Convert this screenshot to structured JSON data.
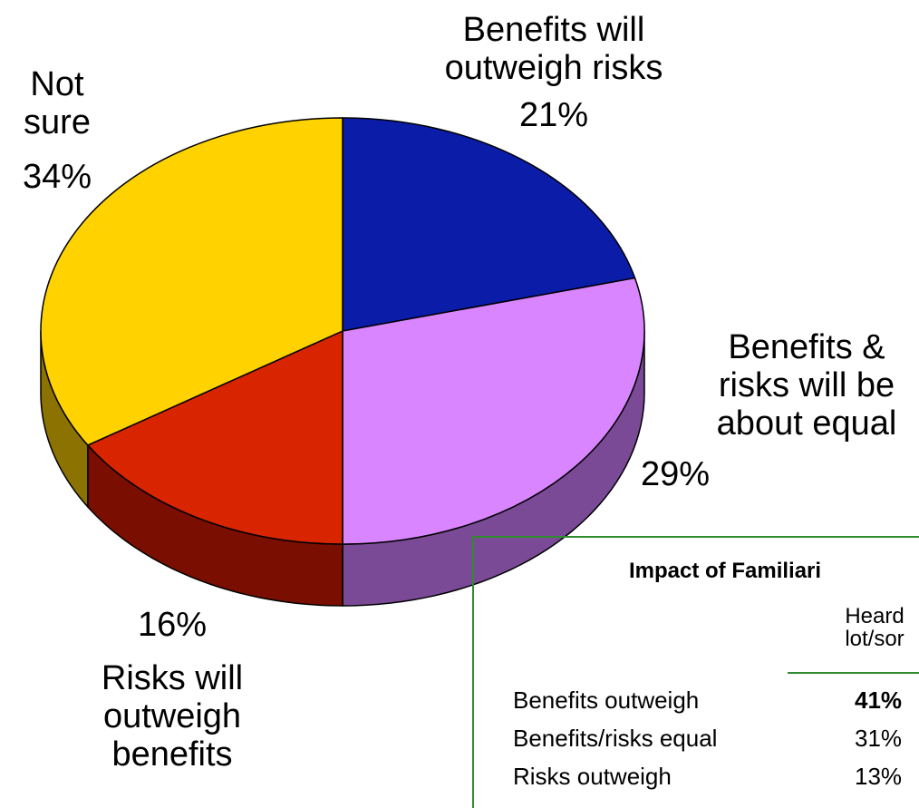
{
  "chart_data": {
    "type": "pie",
    "title": "",
    "slices": [
      {
        "label": "Benefits will outweigh risks",
        "lines": [
          "Benefits will",
          "outweigh risks"
        ],
        "value": 21,
        "pct_label": "21%",
        "color": "#0a1ca8",
        "side_color": "#05105e"
      },
      {
        "label": "Benefits & risks will be about equal",
        "lines": [
          "Benefits &",
          "risks will be",
          "about equal"
        ],
        "value": 29,
        "pct_label": "29%",
        "color": "#d985ff",
        "side_color": "#7a4a96"
      },
      {
        "label": "Risks will outweigh benefits",
        "lines": [
          "Risks will",
          "outweigh",
          "benefits"
        ],
        "value": 16,
        "pct_label": "16%",
        "color": "#d92400",
        "side_color": "#7a0e00"
      },
      {
        "label": "Not sure",
        "lines": [
          "Not",
          "sure"
        ],
        "value": 34,
        "pct_label": "34%",
        "color": "#ffd200",
        "side_color": "#8c7200"
      }
    ]
  },
  "impact_table": {
    "title": "Impact of Familiari",
    "column_header": [
      "Heard",
      "lot/sor"
    ],
    "rows": [
      {
        "label": "Benefits outweigh",
        "value": "41%",
        "bold": true
      },
      {
        "label": "Benefits/risks equal",
        "value": "31%",
        "bold": false
      },
      {
        "label": "Risks outweigh",
        "value": "13%",
        "bold": false
      }
    ]
  }
}
